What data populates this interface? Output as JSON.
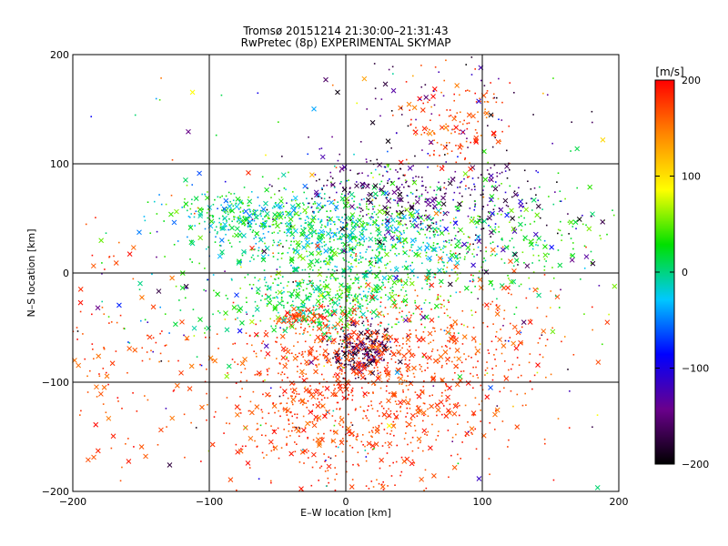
{
  "chart_data": {
    "type": "scatter",
    "title": "Tromsø 20151214 21:30:00–21:31:43",
    "subtitle": "RwPretec (8p) EXPERIMENTAL SKYMAP",
    "xlabel": "E–W location [km]",
    "ylabel": "N–S location [km]",
    "xlim": [
      -200,
      200
    ],
    "ylim": [
      -200,
      200
    ],
    "xticks": [
      -200,
      -100,
      0,
      100,
      200
    ],
    "yticks": [
      -200,
      -100,
      0,
      100,
      200
    ],
    "grid": true,
    "marker_styles": [
      "dot",
      "cross"
    ],
    "colorbar": {
      "label": "[m/s]",
      "range": [
        -200,
        200
      ],
      "ticks": [
        -200,
        -100,
        0,
        100,
        200
      ],
      "colormap": [
        "#000000",
        "#6a008c",
        "#0000ff",
        "#00c8ff",
        "#00e000",
        "#ffff00",
        "#ff8800",
        "#ff0000"
      ]
    },
    "clusters": [
      {
        "x": -85,
        "y": 55,
        "sx": 12,
        "sy": 10,
        "v": [
          -20,
          40
        ],
        "n": 70
      },
      {
        "x": -20,
        "y": 45,
        "sx": 50,
        "sy": 18,
        "v": [
          -60,
          60
        ],
        "n": 650
      },
      {
        "x": 25,
        "y": 20,
        "sx": 40,
        "sy": 18,
        "v": [
          -40,
          60
        ],
        "n": 400
      },
      {
        "x": 35,
        "y": 70,
        "sx": 40,
        "sy": 22,
        "v": [
          -200,
          -120
        ],
        "n": 260
      },
      {
        "x": 80,
        "y": 135,
        "sx": 22,
        "sy": 22,
        "v": [
          140,
          200
        ],
        "n": 150
      },
      {
        "x": 60,
        "y": 160,
        "sx": 50,
        "sy": 25,
        "v": [
          -200,
          -100
        ],
        "n": 45
      },
      {
        "x": 0,
        "y": -20,
        "sx": 35,
        "sy": 14,
        "v": [
          -20,
          70
        ],
        "n": 350
      },
      {
        "x": -35,
        "y": -40,
        "sx": 10,
        "sy": 4,
        "v": [
          150,
          200
        ],
        "n": 60
      },
      {
        "x": -20,
        "y": -30,
        "sx": 22,
        "sy": 12,
        "v": [
          -20,
          40
        ],
        "n": 120
      },
      {
        "x": 12,
        "y": -70,
        "sx": 12,
        "sy": 12,
        "v": [
          -200,
          -140
        ],
        "n": 220
      },
      {
        "x": 5,
        "y": -70,
        "sx": 40,
        "sy": 25,
        "v": [
          150,
          200
        ],
        "n": 400
      },
      {
        "x": 0,
        "y": -130,
        "sx": 55,
        "sy": 35,
        "v": [
          150,
          200
        ],
        "n": 650
      },
      {
        "x": 90,
        "y": -60,
        "sx": 35,
        "sy": 35,
        "v": [
          150,
          200
        ],
        "n": 220
      },
      {
        "x": -170,
        "y": -80,
        "sx": 30,
        "sy": 50,
        "v": [
          150,
          200
        ],
        "n": 130
      },
      {
        "x": 130,
        "y": 30,
        "sx": 40,
        "sy": 30,
        "v": [
          0,
          60
        ],
        "n": 180
      },
      {
        "x": 100,
        "y": 60,
        "sx": 35,
        "sy": 30,
        "v": [
          -200,
          -80
        ],
        "n": 120
      },
      {
        "x": -100,
        "y": -20,
        "sx": 30,
        "sy": 30,
        "v": [
          -10,
          50
        ],
        "n": 60
      },
      {
        "x": 0,
        "y": 0,
        "sx": 110,
        "sy": 110,
        "v": [
          -200,
          200
        ],
        "n": 350
      }
    ]
  }
}
